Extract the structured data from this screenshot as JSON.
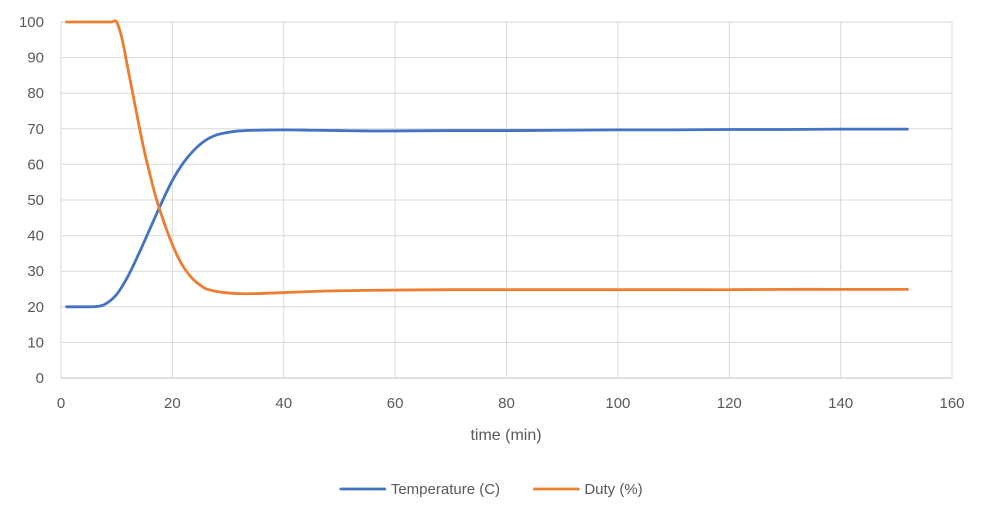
{
  "chart_data": {
    "type": "line",
    "title": "",
    "xlabel": "time (min)",
    "ylabel": "",
    "xlim": [
      0,
      160
    ],
    "ylim": [
      0,
      100
    ],
    "x_ticks": [
      0,
      20,
      40,
      60,
      80,
      100,
      120,
      140,
      160
    ],
    "y_ticks": [
      0,
      10,
      20,
      30,
      40,
      50,
      60,
      70,
      80,
      90,
      100
    ],
    "grid": true,
    "legend_position": "bottom",
    "series": [
      {
        "name": "Temperature (C)",
        "color": "#4472C4",
        "points": [
          [
            1,
            20
          ],
          [
            3,
            20
          ],
          [
            5,
            20
          ],
          [
            6.5,
            20.1
          ],
          [
            8,
            20.8
          ],
          [
            10,
            23.5
          ],
          [
            12,
            28.5
          ],
          [
            14,
            35
          ],
          [
            16,
            42
          ],
          [
            18,
            49
          ],
          [
            20,
            55.5
          ],
          [
            22,
            60.5
          ],
          [
            24,
            64.2
          ],
          [
            26,
            66.8
          ],
          [
            28,
            68.3
          ],
          [
            30,
            69
          ],
          [
            32,
            69.4
          ],
          [
            35,
            69.6
          ],
          [
            40,
            69.7
          ],
          [
            45,
            69.6
          ],
          [
            50,
            69.5
          ],
          [
            55,
            69.4
          ],
          [
            60,
            69.4
          ],
          [
            70,
            69.5
          ],
          [
            80,
            69.5
          ],
          [
            90,
            69.6
          ],
          [
            100,
            69.7
          ],
          [
            110,
            69.7
          ],
          [
            120,
            69.8
          ],
          [
            130,
            69.8
          ],
          [
            140,
            69.9
          ],
          [
            152,
            69.9
          ]
        ]
      },
      {
        "name": "Duty (%)",
        "color": "#ED7D31",
        "points": [
          [
            1,
            100
          ],
          [
            3,
            100
          ],
          [
            5,
            100
          ],
          [
            7,
            100
          ],
          [
            9,
            100
          ],
          [
            10,
            100
          ],
          [
            11,
            95
          ],
          [
            12,
            87
          ],
          [
            13,
            79
          ],
          [
            14,
            71
          ],
          [
            15,
            63.5
          ],
          [
            16,
            57
          ],
          [
            17,
            51
          ],
          [
            18,
            46
          ],
          [
            19,
            41.5
          ],
          [
            20,
            37.5
          ],
          [
            21,
            34
          ],
          [
            22,
            31.2
          ],
          [
            23,
            29
          ],
          [
            24,
            27.3
          ],
          [
            25,
            26.1
          ],
          [
            26,
            25.1
          ],
          [
            28,
            24.3
          ],
          [
            30,
            23.9
          ],
          [
            32,
            23.7
          ],
          [
            35,
            23.7
          ],
          [
            40,
            24
          ],
          [
            45,
            24.3
          ],
          [
            50,
            24.5
          ],
          [
            60,
            24.7
          ],
          [
            70,
            24.8
          ],
          [
            80,
            24.8
          ],
          [
            90,
            24.8
          ],
          [
            100,
            24.8
          ],
          [
            110,
            24.8
          ],
          [
            120,
            24.8
          ],
          [
            130,
            24.9
          ],
          [
            140,
            24.9
          ],
          [
            152,
            24.9
          ]
        ]
      }
    ]
  }
}
